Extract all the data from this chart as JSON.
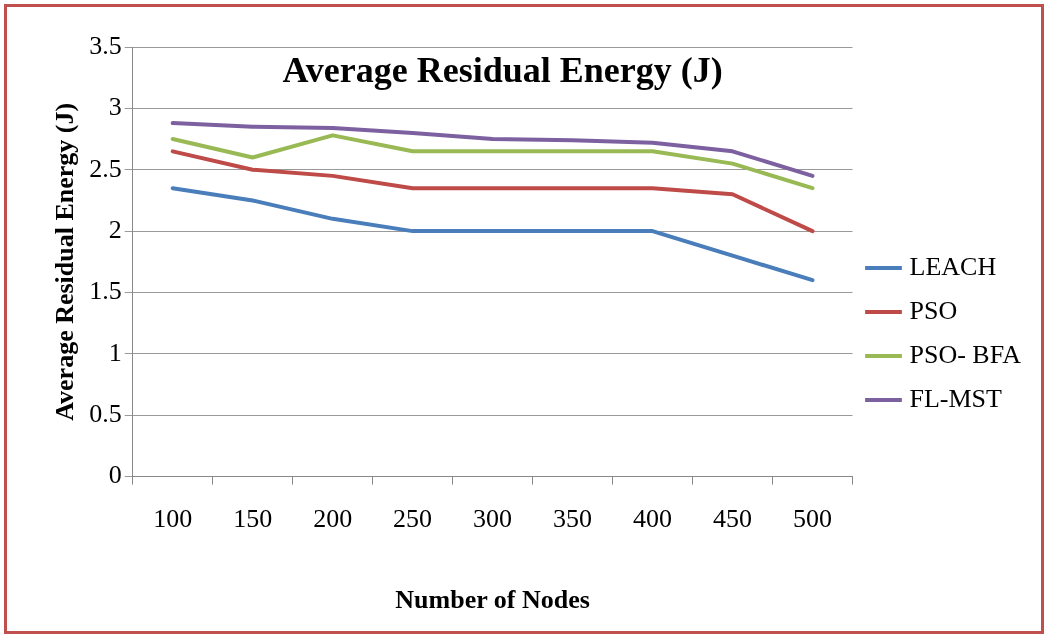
{
  "chart_data": {
    "type": "line",
    "title": "Average Residual Energy (J)",
    "xlabel": "Number of Nodes",
    "ylabel": "Average Residual Energy (J)",
    "categories": [
      "100",
      "150",
      "200",
      "250",
      "300",
      "350",
      "400",
      "450",
      "500"
    ],
    "series": [
      {
        "name": "LEACH",
        "color": "#4a7ebb",
        "values": [
          2.35,
          2.25,
          2.1,
          2.0,
          2.0,
          2.0,
          2.0,
          1.8,
          1.6
        ]
      },
      {
        "name": "PSO",
        "color": "#be4b48",
        "values": [
          2.65,
          2.5,
          2.45,
          2.35,
          2.35,
          2.35,
          2.35,
          2.3,
          2.0
        ]
      },
      {
        "name": "PSO- BFA",
        "color": "#98b954",
        "values": [
          2.75,
          2.6,
          2.78,
          2.65,
          2.65,
          2.65,
          2.65,
          2.55,
          2.35
        ]
      },
      {
        "name": "FL-MST",
        "color": "#7d60a0",
        "values": [
          2.88,
          2.85,
          2.84,
          2.8,
          2.75,
          2.74,
          2.72,
          2.65,
          2.45
        ]
      }
    ],
    "ylim": [
      0,
      3.5
    ],
    "yticks": [
      0,
      0.5,
      1,
      1.5,
      2,
      2.5,
      3,
      3.5
    ],
    "grid": "y",
    "legend": "right",
    "marker": "none",
    "line_style": "solid"
  }
}
